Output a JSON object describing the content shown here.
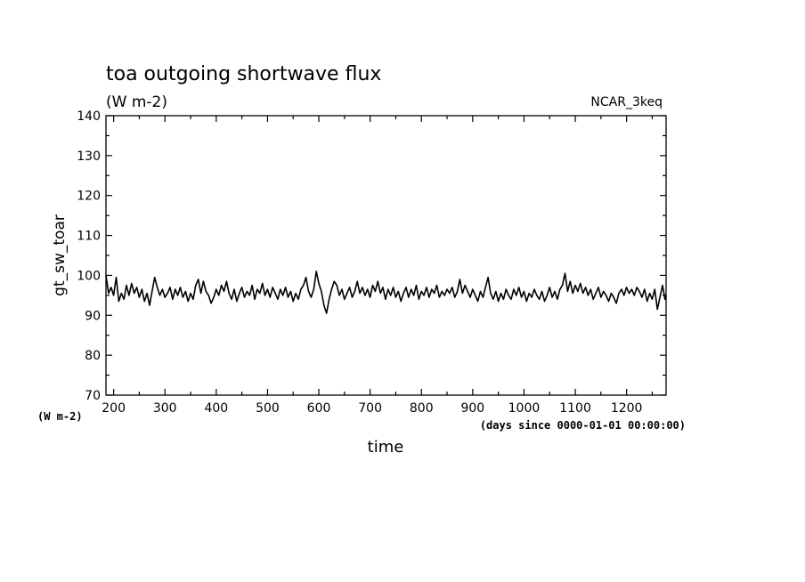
{
  "chart_data": {
    "type": "line",
    "title": "toa outgoing shortwave flux",
    "subtitle": "(W m-2)",
    "source_label": "NCAR_3keq",
    "ylabel": "gt_sw_toar",
    "yunits": "(W m-2)",
    "xlabel": "time",
    "xunits": "(days since 0000-01-01 00:00:00)",
    "xlim": [
      185,
      1277
    ],
    "ylim": [
      70,
      140
    ],
    "x_ticks": [
      200,
      300,
      400,
      500,
      600,
      700,
      800,
      900,
      1000,
      1100,
      1200
    ],
    "y_ticks": [
      70,
      80,
      90,
      100,
      110,
      120,
      130,
      140
    ],
    "grid": false,
    "series": [
      {
        "values": [
          [
            185,
            100.0
          ],
          [
            190,
            95.5
          ],
          [
            195,
            97.0
          ],
          [
            200,
            95.0
          ],
          [
            205,
            99.5
          ],
          [
            210,
            93.5
          ],
          [
            215,
            95.5
          ],
          [
            220,
            94.0
          ],
          [
            225,
            97.5
          ],
          [
            230,
            95.0
          ],
          [
            235,
            98.0
          ],
          [
            240,
            95.5
          ],
          [
            245,
            97.0
          ],
          [
            250,
            94.5
          ],
          [
            255,
            96.5
          ],
          [
            260,
            93.5
          ],
          [
            265,
            95.5
          ],
          [
            270,
            92.5
          ],
          [
            275,
            96.0
          ],
          [
            280,
            99.5
          ],
          [
            285,
            97.0
          ],
          [
            290,
            95.0
          ],
          [
            295,
            96.5
          ],
          [
            300,
            94.5
          ],
          [
            305,
            95.5
          ],
          [
            310,
            97.0
          ],
          [
            315,
            94.0
          ],
          [
            320,
            96.5
          ],
          [
            325,
            95.0
          ],
          [
            330,
            97.0
          ],
          [
            335,
            94.5
          ],
          [
            340,
            96.0
          ],
          [
            345,
            93.5
          ],
          [
            350,
            95.5
          ],
          [
            355,
            94.0
          ],
          [
            360,
            97.5
          ],
          [
            365,
            99.0
          ],
          [
            370,
            95.5
          ],
          [
            375,
            98.5
          ],
          [
            380,
            96.0
          ],
          [
            385,
            95.0
          ],
          [
            390,
            93.0
          ],
          [
            395,
            94.5
          ],
          [
            400,
            96.5
          ],
          [
            405,
            95.0
          ],
          [
            410,
            97.5
          ],
          [
            415,
            96.0
          ],
          [
            420,
            98.5
          ],
          [
            425,
            95.5
          ],
          [
            430,
            94.0
          ],
          [
            435,
            96.5
          ],
          [
            440,
            93.5
          ],
          [
            445,
            95.5
          ],
          [
            450,
            97.0
          ],
          [
            455,
            94.5
          ],
          [
            460,
            96.0
          ],
          [
            465,
            95.0
          ],
          [
            470,
            97.5
          ],
          [
            475,
            94.0
          ],
          [
            480,
            96.5
          ],
          [
            485,
            95.5
          ],
          [
            490,
            98.0
          ],
          [
            495,
            95.0
          ],
          [
            500,
            96.5
          ],
          [
            505,
            94.5
          ],
          [
            510,
            97.0
          ],
          [
            515,
            95.5
          ],
          [
            520,
            94.0
          ],
          [
            525,
            96.5
          ],
          [
            530,
            95.0
          ],
          [
            535,
            97.0
          ],
          [
            540,
            94.5
          ],
          [
            545,
            96.0
          ],
          [
            550,
            93.5
          ],
          [
            555,
            95.5
          ],
          [
            560,
            94.0
          ],
          [
            565,
            96.5
          ],
          [
            570,
            97.5
          ],
          [
            575,
            99.5
          ],
          [
            580,
            96.0
          ],
          [
            585,
            94.5
          ],
          [
            590,
            96.5
          ],
          [
            595,
            101.0
          ],
          [
            600,
            98.0
          ],
          [
            605,
            96.0
          ],
          [
            610,
            92.5
          ],
          [
            615,
            90.5
          ],
          [
            620,
            94.0
          ],
          [
            625,
            96.5
          ],
          [
            630,
            98.5
          ],
          [
            635,
            97.5
          ],
          [
            640,
            95.0
          ],
          [
            645,
            96.5
          ],
          [
            650,
            94.0
          ],
          [
            655,
            95.5
          ],
          [
            660,
            97.0
          ],
          [
            665,
            94.5
          ],
          [
            670,
            96.0
          ],
          [
            675,
            98.5
          ],
          [
            680,
            95.5
          ],
          [
            685,
            97.0
          ],
          [
            690,
            95.0
          ],
          [
            695,
            96.5
          ],
          [
            700,
            94.5
          ],
          [
            705,
            97.5
          ],
          [
            710,
            96.0
          ],
          [
            715,
            98.5
          ],
          [
            720,
            95.5
          ],
          [
            725,
            97.0
          ],
          [
            730,
            94.0
          ],
          [
            735,
            96.5
          ],
          [
            740,
            95.0
          ],
          [
            745,
            97.0
          ],
          [
            750,
            94.5
          ],
          [
            755,
            96.0
          ],
          [
            760,
            93.5
          ],
          [
            765,
            95.5
          ],
          [
            770,
            97.0
          ],
          [
            775,
            94.5
          ],
          [
            780,
            96.5
          ],
          [
            785,
            95.0
          ],
          [
            790,
            97.5
          ],
          [
            795,
            94.0
          ],
          [
            800,
            96.0
          ],
          [
            805,
            95.0
          ],
          [
            810,
            97.0
          ],
          [
            815,
            94.5
          ],
          [
            820,
            96.5
          ],
          [
            825,
            95.5
          ],
          [
            830,
            97.5
          ],
          [
            835,
            94.5
          ],
          [
            840,
            96.0
          ],
          [
            845,
            95.0
          ],
          [
            850,
            96.5
          ],
          [
            855,
            95.5
          ],
          [
            860,
            97.0
          ],
          [
            865,
            94.5
          ],
          [
            870,
            96.0
          ],
          [
            875,
            99.0
          ],
          [
            880,
            95.5
          ],
          [
            885,
            97.5
          ],
          [
            890,
            96.0
          ],
          [
            895,
            94.5
          ],
          [
            900,
            96.5
          ],
          [
            905,
            95.0
          ],
          [
            910,
            93.5
          ],
          [
            915,
            96.0
          ],
          [
            920,
            94.5
          ],
          [
            925,
            97.0
          ],
          [
            930,
            99.5
          ],
          [
            935,
            95.5
          ],
          [
            940,
            94.0
          ],
          [
            945,
            96.0
          ],
          [
            950,
            93.5
          ],
          [
            955,
            95.5
          ],
          [
            960,
            94.0
          ],
          [
            965,
            96.5
          ],
          [
            970,
            95.0
          ],
          [
            975,
            94.0
          ],
          [
            980,
            96.5
          ],
          [
            985,
            95.0
          ],
          [
            990,
            97.0
          ],
          [
            995,
            94.5
          ],
          [
            1000,
            96.0
          ],
          [
            1005,
            93.5
          ],
          [
            1010,
            95.5
          ],
          [
            1015,
            94.5
          ],
          [
            1020,
            96.5
          ],
          [
            1025,
            95.0
          ],
          [
            1030,
            94.0
          ],
          [
            1035,
            96.0
          ],
          [
            1040,
            93.5
          ],
          [
            1045,
            95.0
          ],
          [
            1050,
            97.0
          ],
          [
            1055,
            94.5
          ],
          [
            1060,
            96.0
          ],
          [
            1065,
            94.0
          ],
          [
            1070,
            96.5
          ],
          [
            1075,
            97.5
          ],
          [
            1080,
            100.5
          ],
          [
            1085,
            96.0
          ],
          [
            1090,
            98.5
          ],
          [
            1095,
            95.5
          ],
          [
            1100,
            97.5
          ],
          [
            1105,
            96.0
          ],
          [
            1110,
            98.0
          ],
          [
            1115,
            95.5
          ],
          [
            1120,
            97.0
          ],
          [
            1125,
            95.0
          ],
          [
            1130,
            96.5
          ],
          [
            1135,
            94.0
          ],
          [
            1140,
            95.5
          ],
          [
            1145,
            97.0
          ],
          [
            1150,
            94.5
          ],
          [
            1155,
            96.0
          ],
          [
            1160,
            95.0
          ],
          [
            1165,
            93.5
          ],
          [
            1170,
            95.5
          ],
          [
            1175,
            94.5
          ],
          [
            1180,
            93.0
          ],
          [
            1185,
            95.5
          ],
          [
            1190,
            96.5
          ],
          [
            1195,
            95.0
          ],
          [
            1200,
            97.0
          ],
          [
            1205,
            95.5
          ],
          [
            1210,
            96.5
          ],
          [
            1215,
            95.0
          ],
          [
            1220,
            97.0
          ],
          [
            1225,
            96.0
          ],
          [
            1230,
            94.5
          ],
          [
            1235,
            96.5
          ],
          [
            1240,
            93.5
          ],
          [
            1245,
            95.5
          ],
          [
            1250,
            94.0
          ],
          [
            1255,
            96.5
          ],
          [
            1260,
            91.5
          ],
          [
            1265,
            94.5
          ],
          [
            1270,
            97.5
          ],
          [
            1275,
            94.0
          ],
          [
            1277,
            95.0
          ]
        ]
      }
    ]
  }
}
